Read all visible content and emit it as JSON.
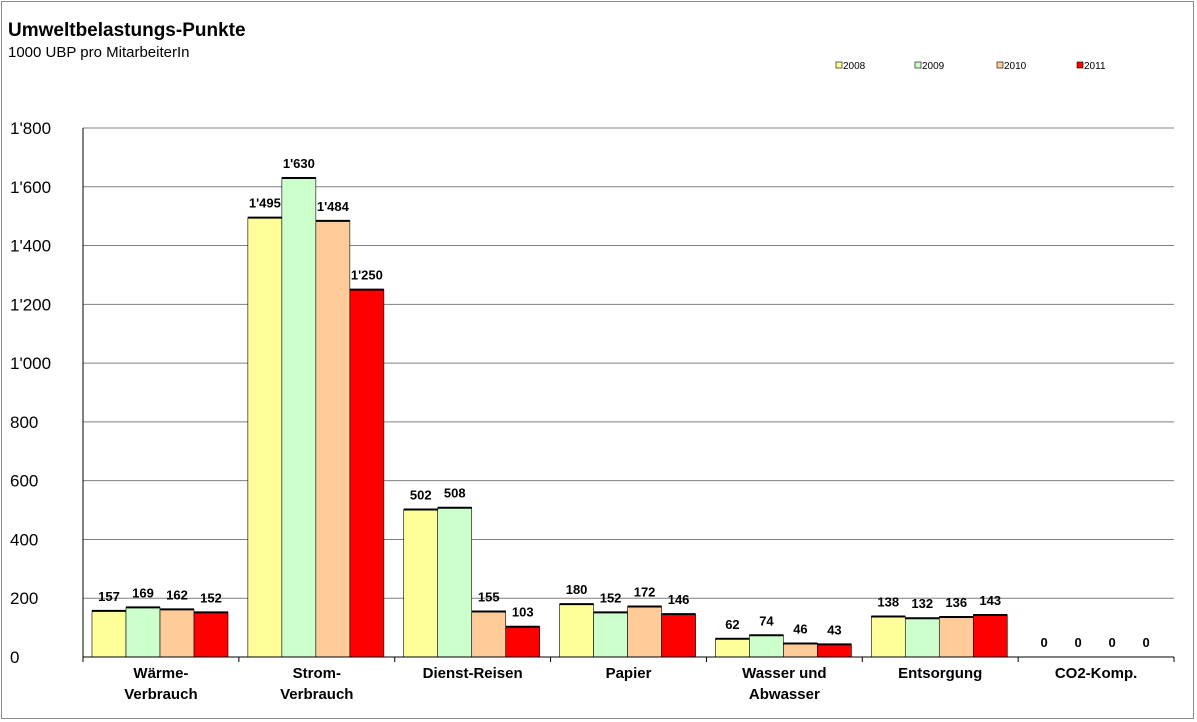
{
  "chart_data": {
    "type": "bar",
    "title": "Umweltbelastungs-Punkte",
    "subtitle": "1000 UBP pro MitarbeiterIn",
    "categories": [
      [
        "Wärme-",
        "Verbrauch"
      ],
      [
        "Strom-",
        "Verbrauch"
      ],
      [
        "Dienst-Reisen"
      ],
      [
        "Papier"
      ],
      [
        "Wasser und",
        "Abwasser"
      ],
      [
        "Entsorgung"
      ],
      [
        "CO2-Komp."
      ]
    ],
    "series": [
      {
        "name": "2008",
        "color": "#ffff99",
        "values": [
          157,
          1495,
          502,
          180,
          62,
          138,
          0
        ],
        "labels": [
          "157",
          "1'495",
          "502",
          "180",
          "62",
          "138",
          "0"
        ]
      },
      {
        "name": "2009",
        "color": "#ccffcc",
        "values": [
          169,
          1630,
          508,
          152,
          74,
          132,
          0
        ],
        "labels": [
          "169",
          "1'630",
          "508",
          "152",
          "74",
          "132",
          "0"
        ]
      },
      {
        "name": "2010",
        "color": "#ffcc99",
        "values": [
          162,
          1484,
          155,
          172,
          46,
          136,
          0
        ],
        "labels": [
          "162",
          "1'484",
          "155",
          "172",
          "46",
          "136",
          "0"
        ]
      },
      {
        "name": "2011",
        "color": "#ff0000",
        "values": [
          152,
          1250,
          103,
          146,
          43,
          143,
          0
        ],
        "labels": [
          "152",
          "1'250",
          "103",
          "146",
          "43",
          "143",
          "0"
        ]
      }
    ],
    "ylim": [
      0,
      1800
    ],
    "yticks": [
      0,
      200,
      400,
      600,
      800,
      1000,
      1200,
      1400,
      1600,
      1800
    ],
    "ytick_labels": [
      "0",
      "200",
      "400",
      "600",
      "800",
      "1'000",
      "1'200",
      "1'400",
      "1'600",
      "1'800"
    ],
    "grid": true,
    "legend_position": "top-right"
  }
}
